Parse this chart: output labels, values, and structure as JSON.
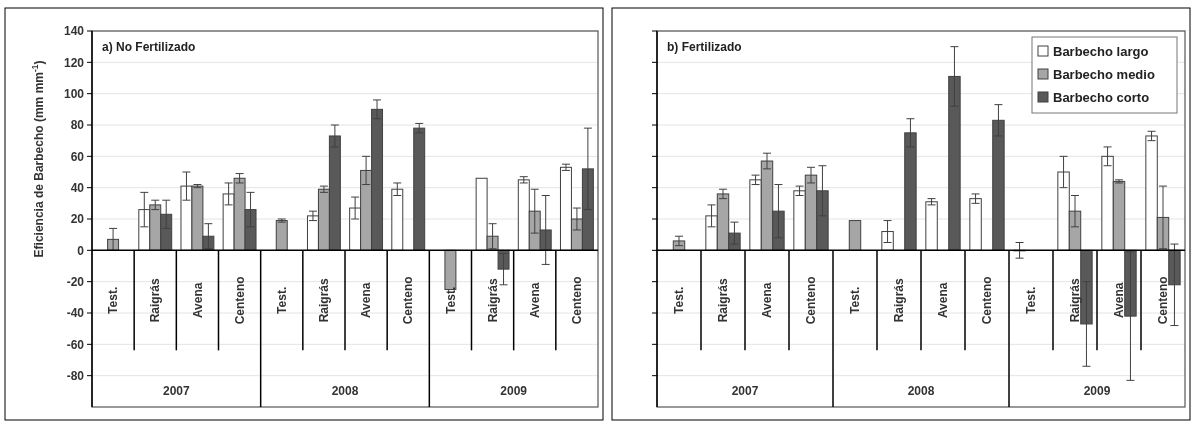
{
  "chart_data": [
    {
      "type": "bar",
      "title": "a) No Fertilizado",
      "ylabel": "Eficiencia de Barbecho (mm mm$^{-1}$)",
      "categories": [
        "Test.",
        "Raigrás",
        "Avena",
        "Centeno",
        "Test.",
        "Raigrás",
        "Avena",
        "Centeno",
        "Test.",
        "Raigrás",
        "Avena",
        "Centeno"
      ],
      "annotations": [
        "2007",
        "2008",
        "2009"
      ],
      "series": [
        {
          "color": "#ffffff",
          "values": [
            null,
            26,
            41,
            36,
            null,
            22,
            27,
            39,
            null,
            46,
            45,
            53
          ],
          "errors": [
            null,
            11,
            9,
            7,
            null,
            3,
            7,
            4,
            null,
            null,
            2,
            2
          ]
        },
        {
          "color": "#a6a6a6",
          "values": [
            7,
            29,
            41,
            46,
            19,
            39,
            51,
            null,
            -25,
            9,
            25,
            20
          ],
          "errors": [
            7,
            3,
            1,
            3,
            1,
            2,
            9,
            null,
            null,
            8,
            14,
            7
          ]
        },
        {
          "color": "#595959",
          "values": [
            null,
            23,
            9,
            26,
            null,
            73,
            90,
            78,
            null,
            -12,
            13,
            52
          ],
          "errors": [
            null,
            9,
            8,
            11,
            null,
            7,
            6,
            3,
            null,
            10,
            22,
            26
          ]
        }
      ],
      "ylim": [
        -100,
        140
      ],
      "yticks": [
        -80,
        -60,
        -40,
        -20,
        0,
        20,
        40,
        60,
        80,
        100,
        120,
        140
      ],
      "grid": "y",
      "legend": false
    },
    {
      "type": "bar",
      "title": "b) Fertilizado",
      "categories": [
        "Test.",
        "Raigrás",
        "Avena",
        "Centeno",
        "Test.",
        "Raigrás",
        "Avena",
        "Centeno",
        "Test.",
        "Raigrás",
        "Avena",
        "Centeno"
      ],
      "annotations": [
        "2007",
        "2008",
        "2009"
      ],
      "series": [
        {
          "name": "Barbecho largo",
          "color": "#ffffff",
          "values": [
            null,
            22,
            45,
            38,
            null,
            12,
            31,
            33,
            0,
            50,
            60,
            73
          ],
          "errors": [
            null,
            7,
            3,
            3,
            null,
            7,
            2,
            3,
            5,
            10,
            6,
            3
          ]
        },
        {
          "name": "Barbecho medio",
          "color": "#a6a6a6",
          "values": [
            6,
            36,
            57,
            48,
            19,
            null,
            null,
            null,
            null,
            25,
            44,
            21
          ],
          "errors": [
            3,
            3,
            5,
            5,
            null,
            null,
            null,
            null,
            null,
            10,
            1,
            20
          ]
        },
        {
          "name": "Barbecho corto",
          "color": "#595959",
          "values": [
            null,
            11,
            25,
            38,
            null,
            75,
            111,
            83,
            null,
            -47,
            -42,
            -22
          ],
          "errors": [
            null,
            7,
            17,
            16,
            null,
            9,
            19,
            10,
            null,
            27,
            41,
            26
          ]
        }
      ],
      "ylim": [
        -100,
        140
      ],
      "yticks": [
        -80,
        -60,
        -40,
        -20,
        0,
        20,
        40,
        60,
        80,
        100,
        120,
        140
      ],
      "grid": "y",
      "legend": "top right",
      "tick_labels": "x"
    }
  ]
}
